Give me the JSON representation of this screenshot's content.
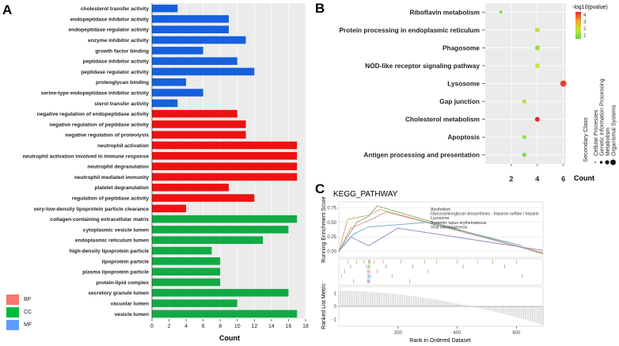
{
  "chart_data": [
    {
      "panel": "A",
      "type": "bar",
      "orientation": "horizontal",
      "xlabel": "Count",
      "xlim": [
        0,
        18
      ],
      "xticks": [
        0,
        2,
        4,
        6,
        8,
        10,
        12,
        14,
        16,
        18
      ],
      "categories": [
        "cholesterol transfer activity",
        "endopeptidase inhibitor activity",
        "endopeptidase regulator activity",
        "enzyme inhibitor activity",
        "growth factor binding",
        "peptidase inhibitor activity",
        "peptidase regulator activity",
        "proteoglycan binding",
        "serine-type endopeptidase inhibitor activity",
        "sterol transfer activity",
        "negative regulation of endopeptidase activity",
        "negative regulation of peptidase activity",
        "negative regulation of proteolysis",
        "neutrophil activation",
        "neutrophil activation involved in immune response",
        "neutrophil degranulation",
        "neutrophil mediated immunity",
        "platelet degranulation",
        "regulation of peptidase activity",
        "very-low-density lipoprotein particle clearance",
        "collagen-containing extracellular matrix",
        "cytoplasmic vesicle lumen",
        "endoplasmic reticulum lumen",
        "high-density lipoprotein particle",
        "lipoprotein particle",
        "plasma lipoprotein particle",
        "protein-lipid complex",
        "secretory granule lumen",
        "vacuolar lumen",
        "vesicle lumen"
      ],
      "values": [
        3,
        9,
        9,
        11,
        6,
        10,
        12,
        4,
        6,
        3,
        10,
        11,
        11,
        17,
        17,
        17,
        17,
        9,
        12,
        4,
        17,
        16,
        13,
        7,
        8,
        8,
        8,
        16,
        10,
        17
      ],
      "groups": [
        "MF",
        "MF",
        "MF",
        "MF",
        "MF",
        "MF",
        "MF",
        "MF",
        "MF",
        "MF",
        "BP",
        "BP",
        "BP",
        "BP",
        "BP",
        "BP",
        "BP",
        "BP",
        "BP",
        "BP",
        "CC",
        "CC",
        "CC",
        "CC",
        "CC",
        "CC",
        "CC",
        "CC",
        "CC",
        "CC"
      ],
      "legend": [
        {
          "key": "BP",
          "color": "#f8766d"
        },
        {
          "key": "CC",
          "color": "#00ba38"
        },
        {
          "key": "MF",
          "color": "#619cff"
        }
      ],
      "bar_colors": {
        "BP": "#ee1111",
        "CC": "#11aa44",
        "MF": "#1560dd"
      }
    },
    {
      "panel": "B",
      "type": "scatter",
      "xlabel": "Count",
      "xticks": [
        2,
        4,
        6
      ],
      "xlim": [
        0,
        6.2
      ],
      "categories": [
        "Riboflavin metabolism",
        "Protein processing in endoplasmic reticulum",
        "Phagosome",
        "NOD-like receptor signaling pathway",
        "Lysosome",
        "Gap junction",
        "Cholesterol metabolism",
        "Apoptosis",
        "Antigen processing and presentation"
      ],
      "points": [
        {
          "term": "Riboflavin metabolism",
          "count": 1.2,
          "neglog10p": 1.0
        },
        {
          "term": "Protein processing in endoplasmic reticulum",
          "count": 4,
          "neglog10p": 2.2
        },
        {
          "term": "Phagosome",
          "count": 4,
          "neglog10p": 1.5
        },
        {
          "term": "NOD-like receptor signaling pathway",
          "count": 4,
          "neglog10p": 2.0
        },
        {
          "term": "Lysosome",
          "count": 6,
          "neglog10p": 3.8
        },
        {
          "term": "Gap junction",
          "count": 3,
          "neglog10p": 2.2
        },
        {
          "term": "Cholesterol metabolism",
          "count": 4,
          "neglog10p": 4.0
        },
        {
          "term": "Apoptosis",
          "count": 3,
          "neglog10p": 1.6
        },
        {
          "term": "Antigen processing and presentation",
          "count": 3,
          "neglog10p": 1.3
        }
      ],
      "colorbar_title": "-log10(pvalue)",
      "colorbar_ticks": [
        "4",
        "3",
        "2",
        "1"
      ],
      "colorbar_colors": [
        "#e8262a",
        "#f4a432",
        "#c6e63a",
        "#66d43b"
      ],
      "size_legend_title": "Secondary Class",
      "size_legend_items": [
        "Cellular Processes",
        "Genetic Information Processing",
        "Metabolism",
        "Organismal Systems"
      ]
    },
    {
      "panel": "C",
      "type": "line",
      "title": "KEGG_PATHWAY",
      "ylabel_top": "Running Enrichment Score",
      "ylabel_bottom": "Ranked List Metric",
      "xlabel": "Rank in Ordered Dataset",
      "xticks": [
        200,
        400,
        600
      ],
      "xlim": [
        0,
        690
      ],
      "ylim_top": [
        -0.1,
        0.85
      ],
      "yticks_top": [
        "0.00",
        "0.25",
        "0.50",
        "0.75"
      ],
      "ylim_bottom": [
        -1.5,
        1.5
      ],
      "yticks_bottom": [
        "1",
        "0",
        "-1"
      ],
      "series": [
        {
          "name": "Alcoholism",
          "color": "#c8b37a",
          "x": [
            0,
            30,
            100,
            140,
            690
          ],
          "y": [
            0.0,
            0.55,
            0.62,
            0.72,
            -0.02
          ]
        },
        {
          "name": "Glycosaminoglycan biosynthesis - heparan sulfate / heparin",
          "color": "#8ab27a",
          "x": [
            0,
            60,
            100,
            130,
            690
          ],
          "y": [
            0.0,
            0.5,
            0.6,
            0.78,
            -0.04
          ]
        },
        {
          "name": "Lysosome",
          "color": "#d49b9b",
          "x": [
            0,
            40,
            110,
            160,
            690
          ],
          "y": [
            0.0,
            0.4,
            0.55,
            0.68,
            -0.03
          ]
        },
        {
          "name": "Systemic lupus erythematosus",
          "color": "#7ab0c8",
          "x": [
            0,
            50,
            100,
            300,
            620
          ],
          "y": [
            0.0,
            0.3,
            0.42,
            0.5,
            0.1
          ]
        },
        {
          "name": "Viral carcinogenesis",
          "color": "#9a8fc8",
          "x": [
            0,
            40,
            100,
            200,
            690
          ],
          "y": [
            0.0,
            0.25,
            0.1,
            0.4,
            0.02
          ]
        }
      ],
      "panel_labels": [
        "A",
        "B",
        "C"
      ]
    }
  ]
}
